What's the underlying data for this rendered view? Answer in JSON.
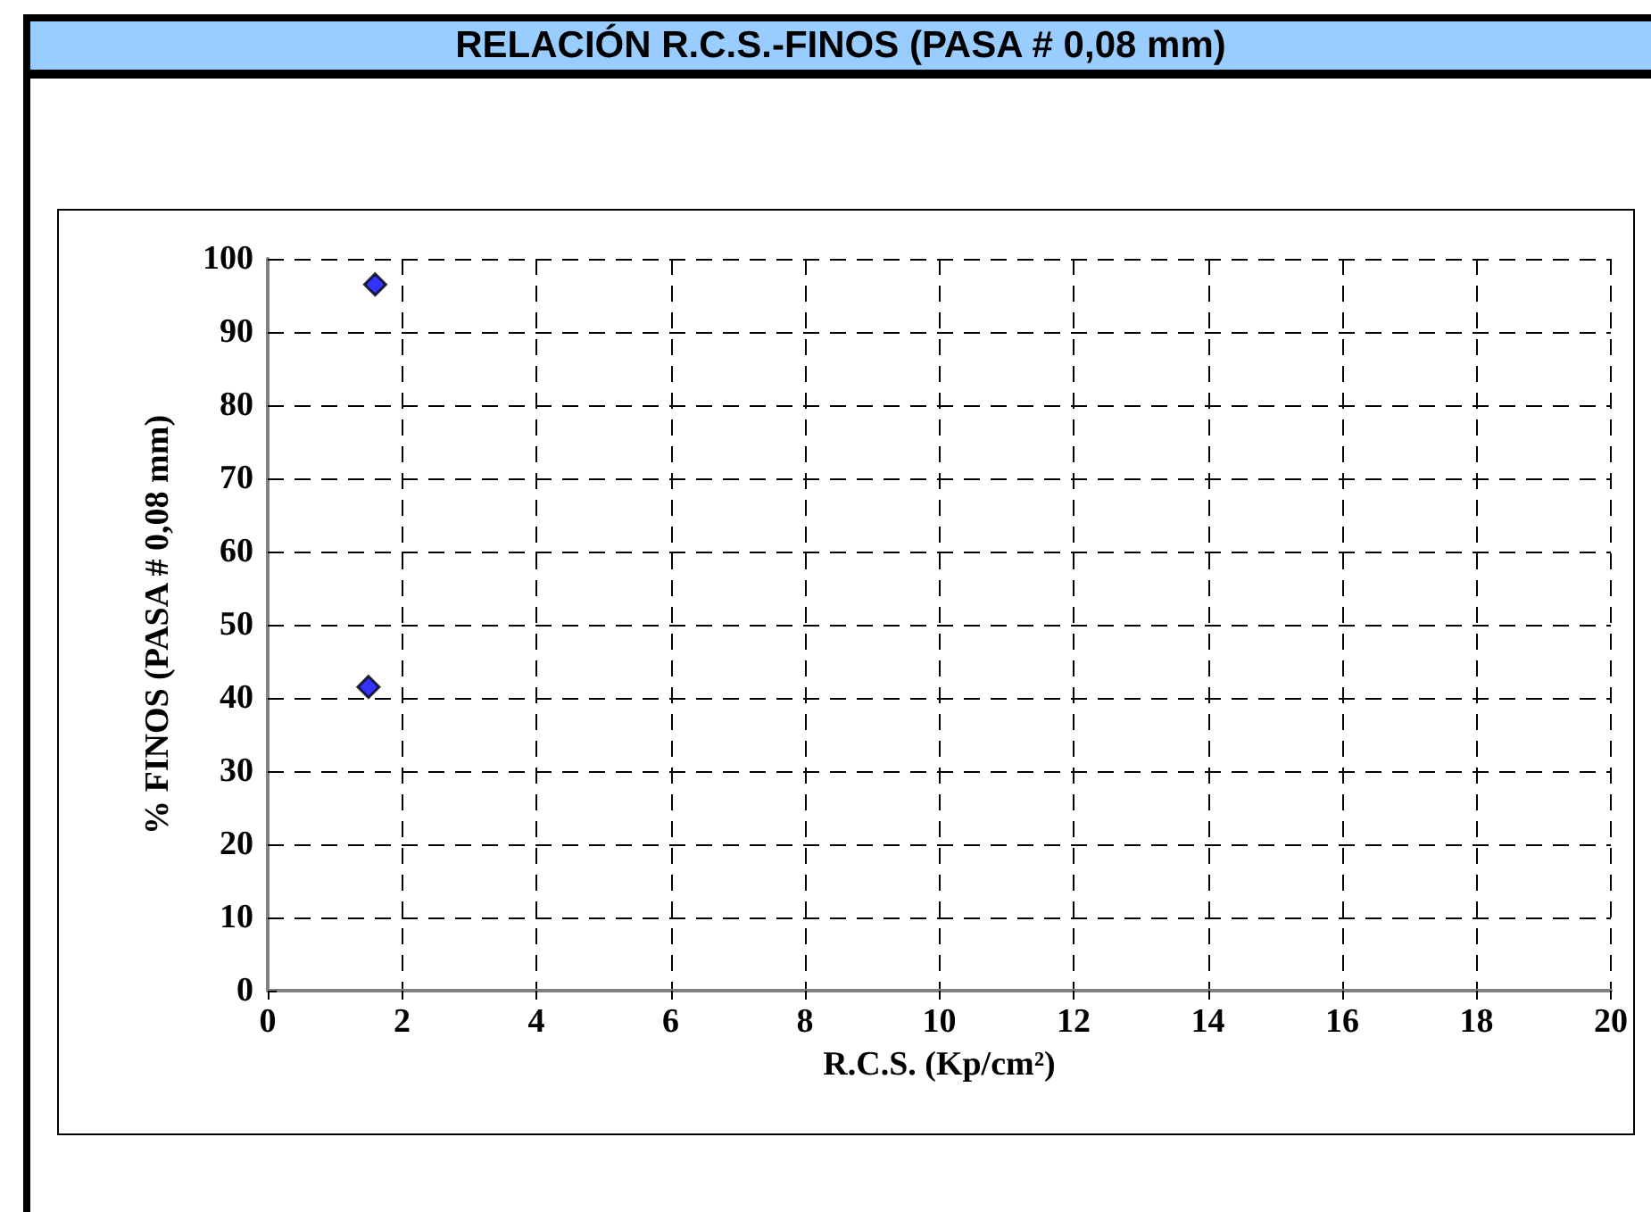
{
  "chart_data": {
    "type": "scatter",
    "title": "RELACIÓN R.C.S.-FINOS (PASA # 0,08 mm)",
    "xlabel": "R.C.S. (Kp/cm²)",
    "ylabel": "% FINOS (PASA # 0,08 mm)",
    "series": [
      {
        "color": "#0000ff",
        "x": [
          1.6,
          1.5
        ],
        "values": [
          96.5,
          41.5
        ]
      }
    ],
    "xlim": [
      0,
      20
    ],
    "xticks": [
      0,
      2,
      4,
      6,
      8,
      10,
      12,
      14,
      16,
      18,
      20
    ],
    "ylim": [
      0,
      100
    ],
    "yticks": [
      0,
      10,
      20,
      30,
      40,
      50,
      60,
      70,
      80,
      90,
      100
    ],
    "grid": true,
    "marker": "diamond"
  }
}
